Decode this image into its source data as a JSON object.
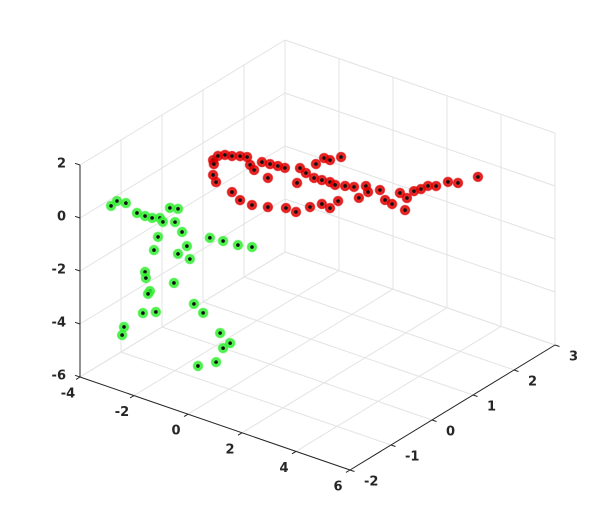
{
  "chart_data": {
    "type": "scatter3",
    "xlim": [
      -4,
      6
    ],
    "ylim": [
      -2,
      3
    ],
    "zlim": [
      -6,
      2
    ],
    "xticks": [
      -4,
      -2,
      0,
      2,
      4,
      6
    ],
    "yticks": [
      -2,
      -1,
      0,
      1,
      2,
      3
    ],
    "zticks": [
      -6,
      -4,
      -2,
      0,
      2
    ],
    "grid": true,
    "series": [
      {
        "color": "#e00000",
        "x": [
          -3.93,
          -3.75,
          -3.49,
          -3.23,
          -2.93,
          -2.67,
          -3.93,
          -3.82,
          -3.23,
          -3.9,
          -2.56,
          -2.41,
          -2.12,
          -1.82,
          -1.53,
          -1.9,
          -1.27,
          -0.71,
          -0.82,
          -0.49,
          -0.19,
          0.1,
          0.4,
          -0.12,
          0.18,
          0.4,
          0.81,
          0.59,
          0.96,
          1.29,
          1.73,
          1.81,
          2.25,
          2.44,
          2.7,
          2.99,
          3.18,
          3.25,
          3.51,
          3.77,
          4.03,
          4.33,
          4.77,
          5.14,
          5.88,
          -2.93,
          -2.49,
          -1.9,
          -1.23,
          -0.86,
          -0.34,
          0.1,
          0.4,
          0.7,
          1.47
        ],
        "y": [
          1.2,
          1.2,
          1.2,
          1.2,
          1.2,
          1.2,
          1.2,
          1.2,
          1.2,
          1.2,
          1.2,
          1.2,
          1.2,
          1.2,
          1.2,
          1.2,
          1.2,
          1.2,
          1.2,
          1.2,
          1.2,
          1.2,
          1.2,
          1.2,
          1.2,
          1.2,
          1.2,
          1.2,
          1.2,
          1.2,
          1.2,
          1.2,
          1.2,
          1.2,
          1.2,
          1.2,
          1.2,
          1.2,
          1.2,
          1.2,
          1.2,
          1.2,
          1.2,
          1.2,
          1.2,
          1.2,
          1.2,
          1.2,
          1.2,
          1.2,
          1.2,
          1.2,
          1.2,
          1.2,
          1.2
        ],
        "z": [
          -0.81,
          -0.59,
          -0.46,
          -0.41,
          -0.31,
          -0.25,
          -1.37,
          -1.6,
          -1.77,
          -0.95,
          -0.51,
          -0.65,
          -0.25,
          -0.22,
          -0.19,
          -0.77,
          -0.17,
          0.02,
          -0.58,
          -0.09,
          -0.17,
          -0.15,
          -0.12,
          0.38,
          0.71,
          0.71,
          0.97,
          -0.16,
          -0.07,
          0.01,
          0.2,
          0.0,
          0.23,
          -0.08,
          -0.14,
          0.38,
          -0.2,
          0.28,
          0.63,
          0.8,
          1.01,
          1.11,
          1.42,
          1.51,
          2.0,
          -1.97,
          -2.0,
          -1.87,
          -1.67,
          -1.69,
          -1.32,
          -1.05,
          -1.1,
          -0.73,
          -0.34
        ]
      },
      {
        "color": "#33ee33",
        "x": [
          -2.85,
          -2.63,
          -2.3,
          -1.89,
          -1.59,
          -1.33,
          -1.04,
          -0.93,
          -0.67,
          -0.37,
          -0.48,
          -0.22,
          -1.11,
          -1.26,
          -0.04,
          0.81,
          1.3,
          1.85,
          2.37,
          -1.59,
          -1.56,
          -1.41,
          -1.48,
          -0.52,
          0.07,
          -0.37,
          -1.67,
          -1.19,
          0.22,
          0.56,
          -2.37,
          -2.44,
          1.19,
          1.56,
          1.3,
          1.04,
          0.37
        ],
        "y": [
          -2,
          -2,
          -2,
          -2,
          -2,
          -2,
          -2,
          -2,
          -2,
          -2,
          -2,
          -2,
          -2,
          -2,
          -2,
          -2,
          -2,
          -2,
          -2,
          -2,
          -2,
          -2,
          -2,
          -2,
          -2,
          -2,
          -2,
          -2,
          -2,
          -2,
          -2,
          -2,
          -2,
          -2,
          -2,
          -2,
          -2
        ],
        "z": [
          0.86,
          1.12,
          1.16,
          0.93,
          0.92,
          0.94,
          1.04,
          0.93,
          1.55,
          1.62,
          1.08,
          0.8,
          0.3,
          -0.25,
          0.33,
          0.94,
          0.99,
          1.03,
          1.14,
          -1.19,
          -1.41,
          -1.85,
          -1.98,
          -1.23,
          -0.12,
          -0.08,
          -2.77,
          -2.56,
          -1.76,
          -1.98,
          -3.54,
          -3.87,
          -2.52,
          -2.77,
          -3.05,
          -3.67,
          -4.05
        ]
      }
    ]
  }
}
